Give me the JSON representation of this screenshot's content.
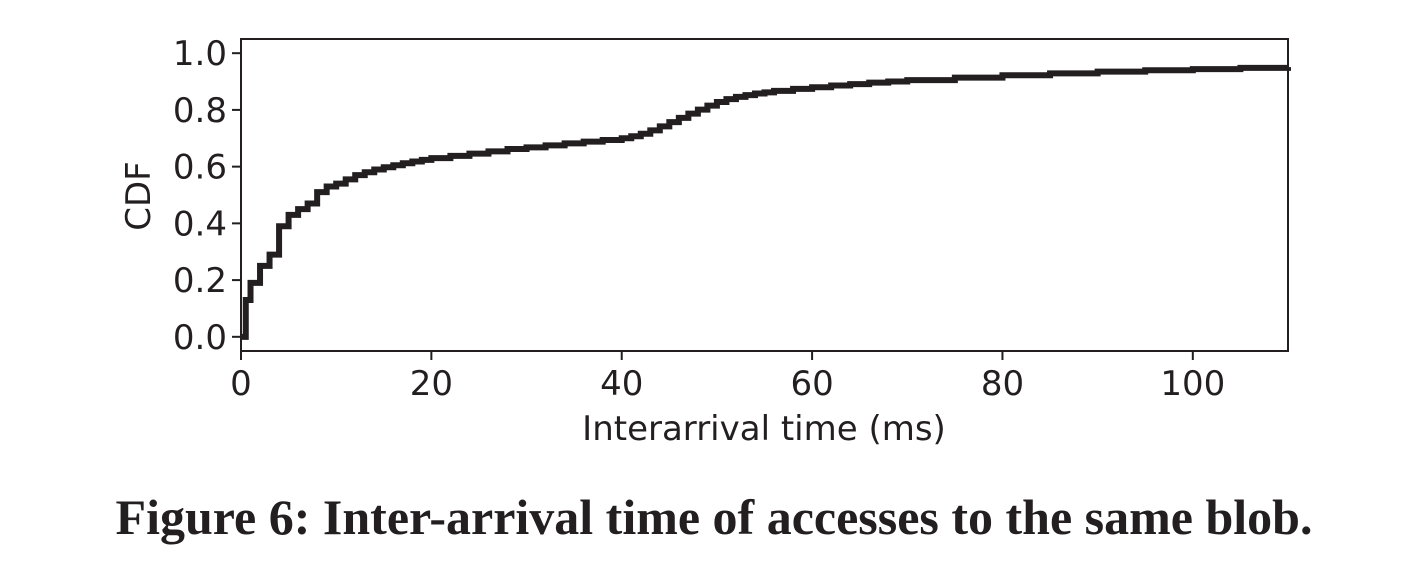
{
  "caption": "Figure 6: Inter-arrival time of accesses to the same blob.",
  "colors": {
    "line": "#231f20",
    "axis": "#231f20",
    "text": "#231f20"
  },
  "chart_data": {
    "type": "line",
    "subtype": "step-cdf",
    "title": "",
    "xlabel": "Interarrival time (ms)",
    "ylabel": "CDF",
    "xlim": [
      0,
      110
    ],
    "ylim": [
      -0.05,
      1.05
    ],
    "xticks": [
      0,
      20,
      40,
      60,
      80,
      100
    ],
    "yticks": [
      0.0,
      0.2,
      0.4,
      0.6,
      0.8,
      1.0
    ],
    "ytick_labels": [
      "0.0",
      "0.2",
      "0.4",
      "0.6",
      "0.8",
      "1.0"
    ],
    "grid": false,
    "legend": "none",
    "series": [
      {
        "x": [
          0,
          0.5,
          1,
          2,
          3,
          4,
          5,
          6,
          7,
          8,
          9,
          10,
          11,
          12,
          13,
          14,
          15,
          16,
          17,
          18,
          19,
          20,
          22,
          24,
          26,
          28,
          30,
          32,
          34,
          36,
          38,
          40,
          41,
          42,
          43,
          44,
          45,
          46,
          47,
          48,
          49,
          50,
          51,
          52,
          53,
          54,
          55,
          56,
          58,
          60,
          62,
          64,
          66,
          68,
          70,
          75,
          80,
          85,
          90,
          95,
          100,
          105,
          110
        ],
        "y": [
          0.0,
          0.13,
          0.19,
          0.25,
          0.29,
          0.39,
          0.43,
          0.45,
          0.47,
          0.51,
          0.53,
          0.54,
          0.555,
          0.57,
          0.58,
          0.59,
          0.598,
          0.605,
          0.612,
          0.618,
          0.624,
          0.63,
          0.638,
          0.646,
          0.654,
          0.662,
          0.668,
          0.675,
          0.682,
          0.688,
          0.694,
          0.7,
          0.707,
          0.716,
          0.728,
          0.742,
          0.757,
          0.772,
          0.787,
          0.801,
          0.815,
          0.828,
          0.838,
          0.846,
          0.852,
          0.858,
          0.862,
          0.867,
          0.874,
          0.88,
          0.886,
          0.891,
          0.896,
          0.9,
          0.905,
          0.914,
          0.922,
          0.929,
          0.935,
          0.94,
          0.944,
          0.948,
          0.951
        ]
      }
    ]
  }
}
